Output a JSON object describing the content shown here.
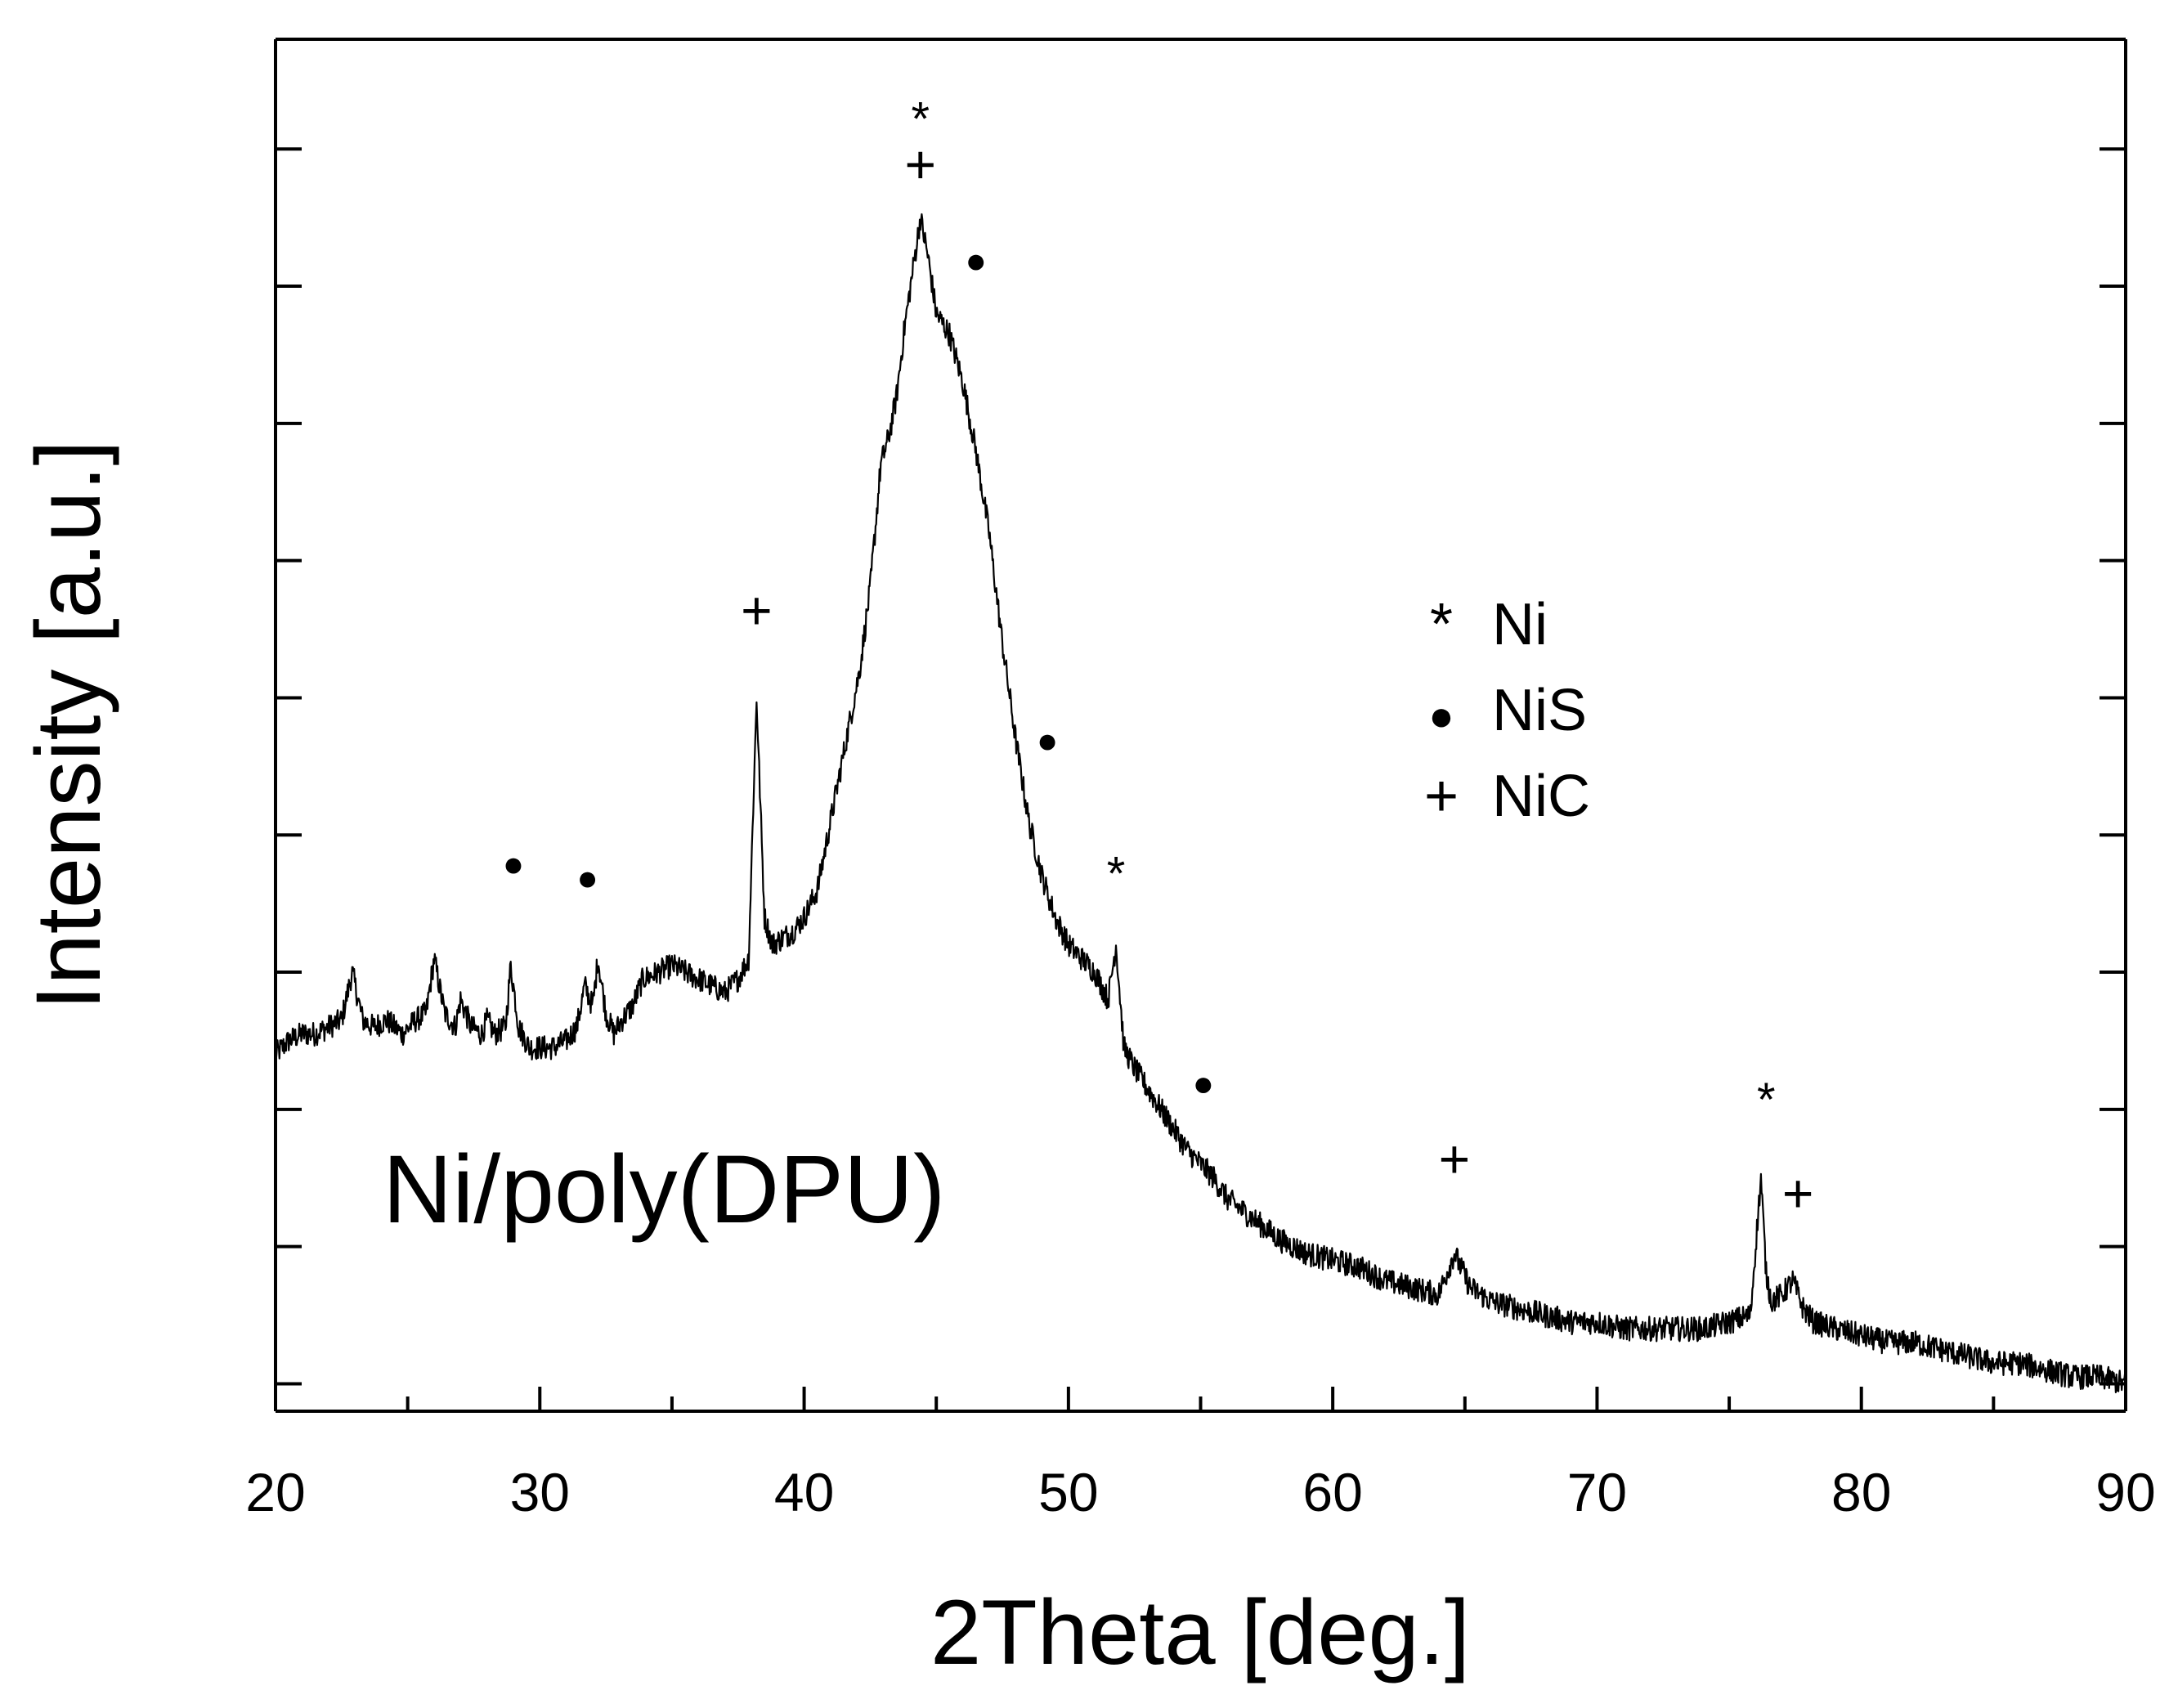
{
  "chart_data": {
    "type": "line",
    "title": "",
    "xlabel": "2Theta [deg.]",
    "ylabel": "Intensity [a.u.]",
    "xlim": [
      20,
      90
    ],
    "ylim": [
      0,
      100
    ],
    "sample_label": "Ni/poly(DPU)",
    "x_ticks": [
      20,
      30,
      40,
      50,
      60,
      70,
      80,
      90
    ],
    "y_ticks_unlabeled": [
      2,
      12,
      22,
      32,
      42,
      52,
      62,
      72,
      82,
      92
    ],
    "legend": [
      {
        "symbol": "*",
        "marker": "star",
        "label": "Ni"
      },
      {
        "symbol": "●",
        "marker": "dot",
        "label": "NiS"
      },
      {
        "symbol": "+",
        "marker": "plus",
        "label": "NiC"
      }
    ],
    "series": [
      {
        "name": "Ni/poly(DPU)",
        "x": [
          20.0,
          20.5,
          21.0,
          21.5,
          22.0,
          22.5,
          22.9,
          23.3,
          23.7,
          24.2,
          24.8,
          25.3,
          25.7,
          26.0,
          26.4,
          26.8,
          27.0,
          27.4,
          27.8,
          28.0,
          28.3,
          28.7,
          28.9,
          29.2,
          29.6,
          30.0,
          30.5,
          31.0,
          31.4,
          31.7,
          32.0,
          32.2,
          32.5,
          32.8,
          33.1,
          33.5,
          33.9,
          34.5,
          35.0,
          35.5,
          36.0,
          36.5,
          37.0,
          37.5,
          37.9,
          38.2,
          38.5,
          38.8,
          39.2,
          39.6,
          40.0,
          40.5,
          40.9,
          41.3,
          41.7,
          42.1,
          42.5,
          42.9,
          43.2,
          43.5,
          43.8,
          44.1,
          44.4,
          44.7,
          45.0,
          45.5,
          46.0,
          46.5,
          47.0,
          47.5,
          48.0,
          48.5,
          49.0,
          49.5,
          50.0,
          50.5,
          51.0,
          51.5,
          51.8,
          52.1,
          52.5,
          53.0,
          53.5,
          54.0,
          54.5,
          55.0,
          55.5,
          56.0,
          57.0,
          58.0,
          59.0,
          60.0,
          61.0,
          62.0,
          63.0,
          64.0,
          64.6,
          65.2,
          66.0,
          67.0,
          68.0,
          69.0,
          70.0,
          71.0,
          72.0,
          73.0,
          74.0,
          75.0,
          75.8,
          76.2,
          76.4,
          76.6,
          77.0,
          77.4,
          77.8,
          78.2,
          79.0,
          80.0,
          81.0,
          82.0,
          83.0,
          84.0,
          85.0,
          86.0,
          87.0,
          88.0,
          89.0,
          90.0
        ],
        "y": [
          26,
          27,
          27.5,
          27.5,
          28,
          28.5,
          32,
          28.5,
          28,
          28.5,
          27.5,
          28.5,
          29,
          33,
          29,
          28,
          30,
          28,
          27.5,
          28.5,
          27.5,
          28,
          32.5,
          28,
          26.5,
          26.5,
          26.5,
          27,
          28,
          31,
          29.5,
          33,
          29,
          27.5,
          28.5,
          29.5,
          31.5,
          32,
          32.5,
          32,
          31.5,
          31,
          30.5,
          31.5,
          33,
          52,
          36,
          34,
          34.5,
          35,
          36,
          38,
          42,
          46,
          50,
          54,
          60,
          69,
          71,
          74,
          79,
          83,
          87,
          84,
          80,
          78.5,
          75,
          70,
          64,
          56,
          49,
          43,
          39,
          36,
          34,
          33,
          32,
          30,
          34,
          26.5,
          25,
          23.5,
          22,
          20.5,
          19,
          18,
          17,
          15.5,
          14,
          12.5,
          11.5,
          11,
          10.5,
          9.5,
          9,
          8.5,
          11.5,
          9,
          8,
          7.5,
          7,
          6.5,
          6.5,
          6,
          6,
          6,
          6,
          6.5,
          7,
          17,
          10,
          8,
          8.5,
          9.5,
          7.5,
          6.5,
          6,
          5.5,
          5,
          5,
          4.5,
          4,
          3.5,
          3.5,
          3,
          2.5,
          2.5,
          2
        ]
      }
    ],
    "annotations": [
      {
        "text": "*",
        "x": 44.4,
        "y": 93
      },
      {
        "text": "+",
        "x": 44.4,
        "y": 89.5
      },
      {
        "text": "●",
        "x": 46.5,
        "y": 83
      },
      {
        "text": "+",
        "x": 38.2,
        "y": 57
      },
      {
        "text": "●",
        "x": 29.0,
        "y": 39
      },
      {
        "text": "●",
        "x": 31.8,
        "y": 38
      },
      {
        "text": "●",
        "x": 49.2,
        "y": 48
      },
      {
        "text": "*",
        "x": 51.8,
        "y": 38
      },
      {
        "text": "●",
        "x": 55.1,
        "y": 23
      },
      {
        "text": "+",
        "x": 64.6,
        "y": 17
      },
      {
        "text": "*",
        "x": 76.4,
        "y": 21.5
      },
      {
        "text": "+",
        "x": 77.6,
        "y": 14.5
      }
    ]
  }
}
